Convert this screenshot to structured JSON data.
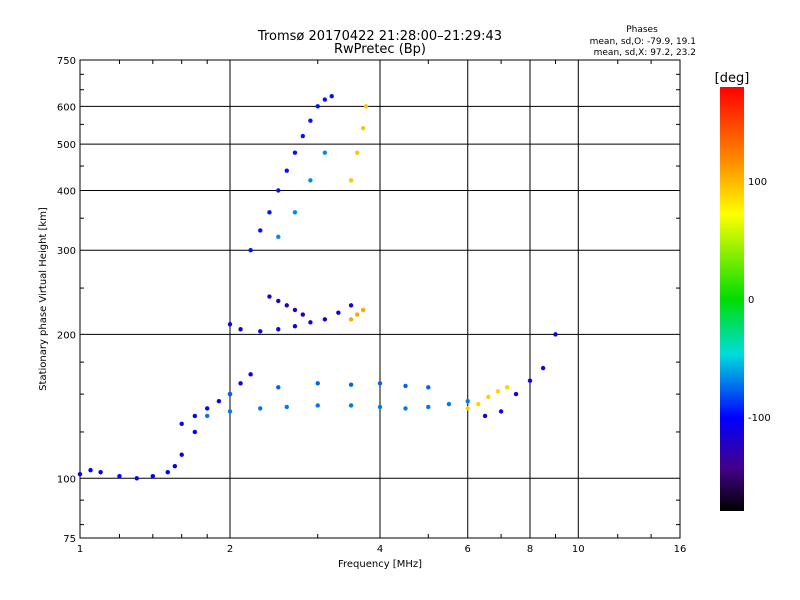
{
  "chart_data": {
    "type": "scatter",
    "title": "Tromsø 20170422 21:28:00–21:29:43",
    "subtitle": "RwPretec (Bp)",
    "xlabel": "Frequency [MHz]",
    "ylabel": "Stationary phase Virtual Height [km]",
    "x_scale": "log",
    "y_scale": "log",
    "xlim": [
      1,
      16
    ],
    "ylim": [
      75,
      750
    ],
    "x_ticks": [
      "1",
      "2",
      "4",
      "6",
      "8",
      "10",
      "16"
    ],
    "y_ticks": [
      "75",
      "100",
      "200",
      "300",
      "400",
      "500",
      "600",
      "750"
    ],
    "grid": true,
    "stats": {
      "heading": "Phases",
      "line_o": "mean, sd,O: -79.9, 19.1",
      "line_x": "mean, sd,X:  97.2, 23.2"
    },
    "colorbar": {
      "label": "[deg]",
      "ticks": [
        "100",
        "0",
        "-100"
      ],
      "range": [
        -180,
        180
      ]
    },
    "traces": [
      {
        "x": [
          1.0,
          1.05,
          1.1,
          1.2,
          1.3,
          1.4,
          1.5,
          1.55,
          1.6,
          1.7
        ],
        "y": [
          102,
          104,
          103,
          101,
          100,
          101,
          103,
          106,
          112,
          125
        ],
        "phase": -100
      },
      {
        "x": [
          1.6,
          1.7,
          1.8,
          1.9,
          2.0,
          2.1,
          2.2
        ],
        "y": [
          130,
          135,
          140,
          145,
          150,
          158,
          165
        ],
        "phase": -105
      },
      {
        "x": [
          1.8,
          2.0,
          2.3,
          2.6,
          3.0,
          3.5,
          4.0,
          4.5,
          5.0,
          5.5,
          6.0
        ],
        "y": [
          135,
          138,
          140,
          141,
          142,
          142,
          141,
          140,
          141,
          143,
          145
        ],
        "phase": -70
      },
      {
        "x": [
          2.0,
          2.5,
          3.0,
          3.5,
          4.0,
          4.5,
          5.0
        ],
        "y": [
          150,
          155,
          158,
          157,
          158,
          156,
          155
        ],
        "phase": -75
      },
      {
        "x": [
          2.0,
          2.1,
          2.3,
          2.5,
          2.7,
          2.9,
          3.1,
          3.3,
          3.5
        ],
        "y": [
          210,
          205,
          203,
          205,
          208,
          212,
          215,
          222,
          230
        ],
        "phase": -110
      },
      {
        "x": [
          2.4,
          2.5,
          2.6,
          2.7,
          2.8
        ],
        "y": [
          240,
          235,
          230,
          225,
          220
        ],
        "phase": -120
      },
      {
        "x": [
          2.2,
          2.3,
          2.4,
          2.5,
          2.6,
          2.7,
          2.8,
          2.9,
          3.0,
          3.1,
          3.2
        ],
        "y": [
          300,
          330,
          360,
          400,
          440,
          480,
          520,
          560,
          600,
          620,
          630
        ],
        "phase": -95
      },
      {
        "x": [
          2.5,
          2.7,
          2.9,
          3.1
        ],
        "y": [
          320,
          360,
          420,
          480
        ],
        "phase": -65
      },
      {
        "x": [
          3.5,
          3.6,
          3.7,
          3.75
        ],
        "y": [
          420,
          480,
          540,
          600
        ],
        "phase": 100
      },
      {
        "x": [
          3.5,
          3.6,
          3.7
        ],
        "y": [
          215,
          220,
          225
        ],
        "phase": 110
      },
      {
        "x": [
          6.0,
          6.3,
          6.6,
          6.9,
          7.2
        ],
        "y": [
          140,
          143,
          148,
          152,
          155
        ],
        "phase": 95
      },
      {
        "x": [
          6.5,
          7.0,
          7.5,
          8.0,
          8.5,
          9.0
        ],
        "y": [
          135,
          138,
          150,
          160,
          170,
          200
        ],
        "phase": -110
      }
    ]
  }
}
